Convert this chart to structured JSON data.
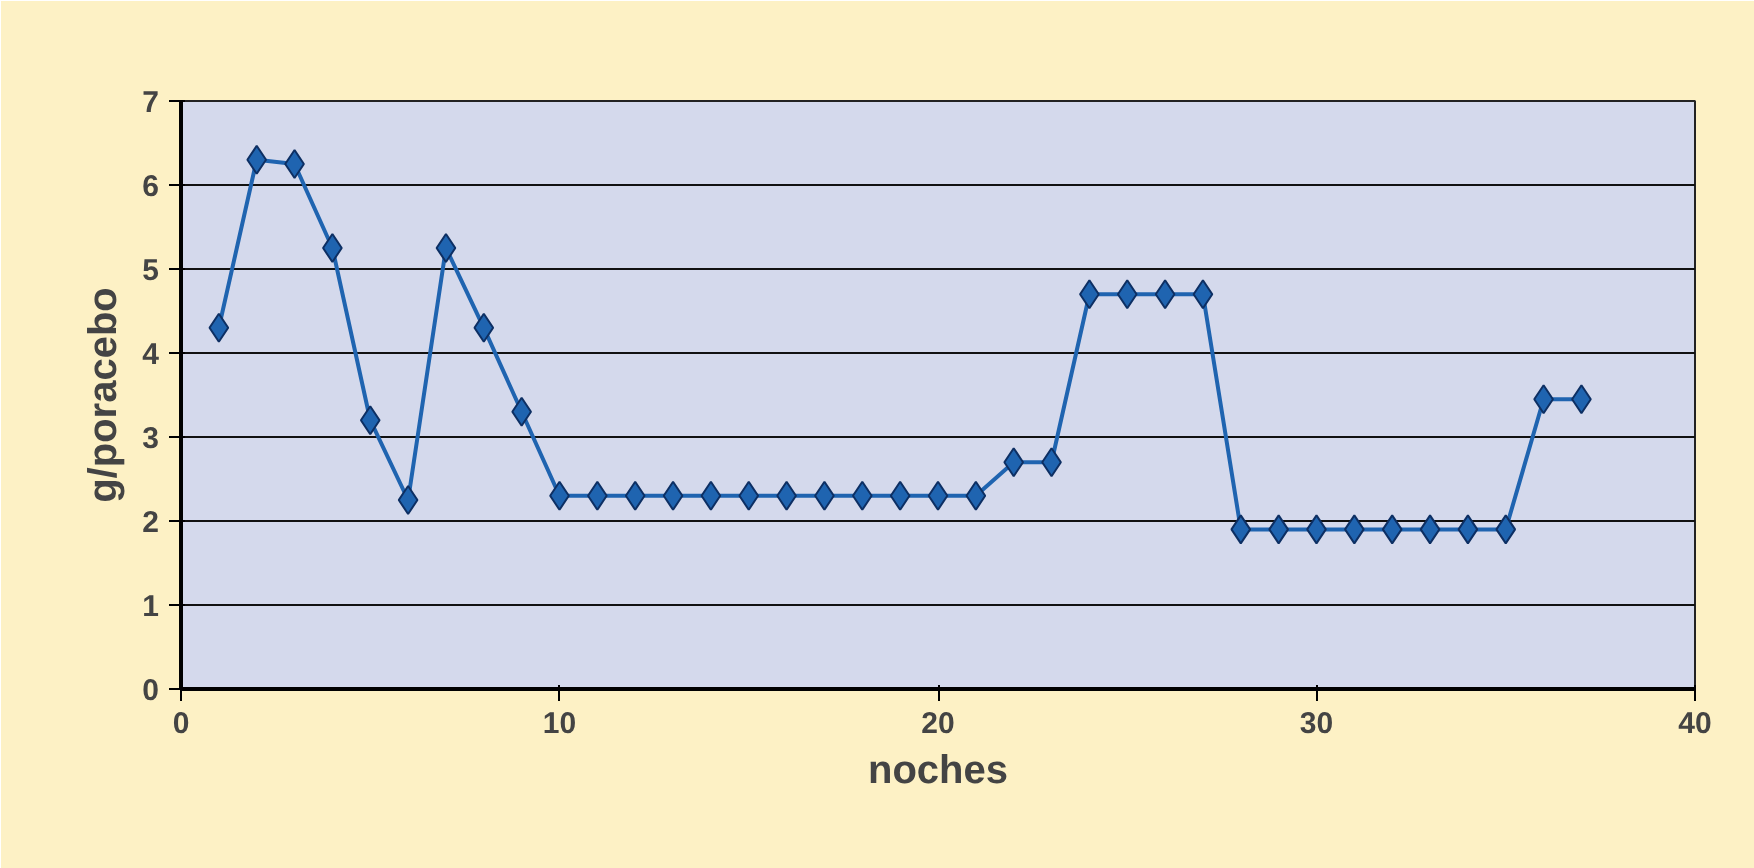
{
  "chart_data": {
    "type": "line",
    "xlabel": "noches",
    "ylabel": "g/poracebo",
    "x": [
      1,
      2,
      3,
      4,
      5,
      6,
      7,
      8,
      9,
      10,
      11,
      12,
      13,
      14,
      15,
      16,
      17,
      18,
      19,
      20,
      21,
      22,
      23,
      24,
      25,
      26,
      27,
      28,
      29,
      30,
      31,
      32,
      33,
      34,
      35,
      36,
      37
    ],
    "series": [
      {
        "color": "#1f64b0",
        "values": [
          4.3,
          6.3,
          6.25,
          5.25,
          3.2,
          2.25,
          5.25,
          4.3,
          3.3,
          2.3,
          2.3,
          2.3,
          2.3,
          2.3,
          2.3,
          2.3,
          2.3,
          2.3,
          2.3,
          2.3,
          2.3,
          2.7,
          2.7,
          4.7,
          4.7,
          4.7,
          4.7,
          1.9,
          1.9,
          1.9,
          1.9,
          1.9,
          1.9,
          1.9,
          1.9,
          3.45,
          3.45
        ]
      }
    ],
    "xlim": [
      0,
      40
    ],
    "xticks": [
      0,
      10,
      20,
      30,
      40
    ],
    "ylim": [
      0,
      7
    ],
    "yticks": [
      0,
      1,
      2,
      3,
      4,
      5,
      6,
      7
    ],
    "grid": "y",
    "marker": "diamond",
    "line_style": "solid"
  }
}
